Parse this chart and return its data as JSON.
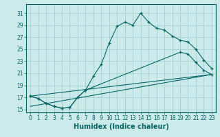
{
  "xlabel": "Humidex (Indice chaleur)",
  "bg_color": "#cceaea",
  "grid_color": "#99cccc",
  "line_color": "#006666",
  "xlim": [
    -0.5,
    23.5
  ],
  "ylim": [
    14.5,
    32.5
  ],
  "xticks": [
    0,
    1,
    2,
    3,
    4,
    5,
    6,
    7,
    8,
    9,
    10,
    11,
    12,
    13,
    14,
    15,
    16,
    17,
    18,
    19,
    20,
    21,
    22,
    23
  ],
  "yticks": [
    15,
    17,
    19,
    21,
    23,
    25,
    27,
    29,
    31
  ],
  "line1_x": [
    0,
    1,
    2,
    3,
    4,
    5,
    6,
    7,
    8,
    9,
    10,
    11,
    12,
    13,
    14,
    15,
    16,
    17,
    18,
    19,
    20,
    21,
    22,
    23
  ],
  "line1_y": [
    17.2,
    16.8,
    16.0,
    15.5,
    15.2,
    15.3,
    17.0,
    18.2,
    20.5,
    22.5,
    26.0,
    28.8,
    29.5,
    29.0,
    31.0,
    29.5,
    28.5,
    28.2,
    27.2,
    26.5,
    26.2,
    25.0,
    23.2,
    21.8
  ],
  "line2_x": [
    0,
    1,
    2,
    3,
    4,
    5,
    6,
    7,
    19,
    20,
    21,
    22,
    23
  ],
  "line2_y": [
    17.2,
    16.8,
    16.0,
    15.5,
    15.2,
    15.3,
    17.0,
    18.2,
    24.5,
    24.2,
    22.8,
    21.5,
    20.8
  ],
  "line3_x": [
    0,
    23
  ],
  "line3_y": [
    17.2,
    20.8
  ],
  "line4_x": [
    0,
    23
  ],
  "line4_y": [
    15.5,
    20.8
  ],
  "xlabel_fontsize": 7,
  "tick_fontsize": 5.5
}
